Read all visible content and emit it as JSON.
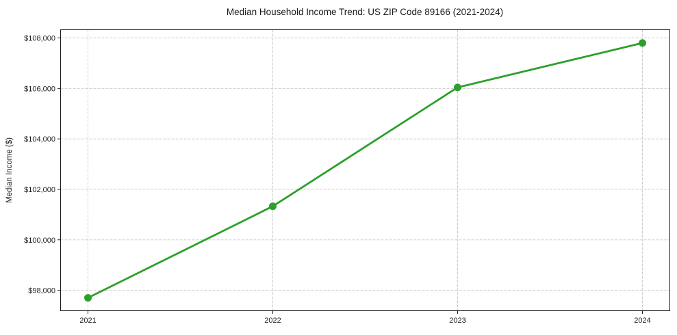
{
  "chart_data": {
    "type": "line",
    "title": "Median Household Income Trend: US ZIP Code 89166 (2021-2024)",
    "xlabel": "",
    "ylabel": "Median Income ($)",
    "categories": [
      "2021",
      "2022",
      "2023",
      "2024"
    ],
    "series": [
      {
        "name": "Median household income",
        "values": [
          97700,
          101330,
          106040,
          107800
        ]
      }
    ],
    "ylim": [
      97190,
      108325
    ],
    "yticks": [
      98000,
      100000,
      102000,
      104000,
      106000,
      108000
    ],
    "ytick_labels": [
      "$98,000",
      "$100,000",
      "$102,000",
      "$104,000",
      "$106,000",
      "$108,000"
    ],
    "grid": true,
    "grid_style": "dashed",
    "legend_position": "none",
    "marker": "circle",
    "colors": {
      "line": "#2ca02c",
      "marker": "#2ca02c",
      "grid": "#c6c6c6",
      "spine": "#1a1a1a",
      "text": "#1a1a1a",
      "background": "#ffffff"
    }
  }
}
